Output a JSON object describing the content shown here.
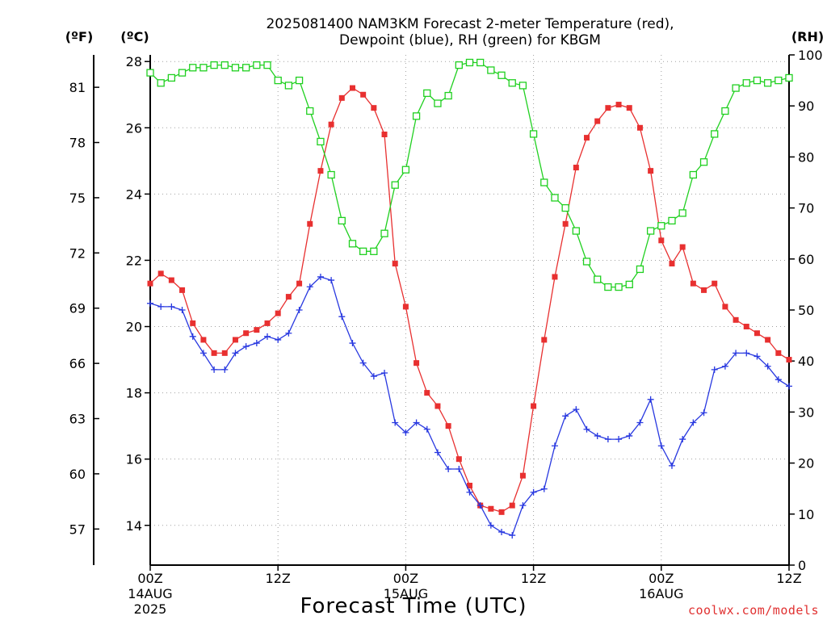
{
  "chart_data": {
    "type": "line",
    "title_line1": "2025081400 NAM3KM Forecast 2-meter Temperature (red),",
    "title_line2": "Dewpoint (blue), RH (green) for KBGM",
    "xlabel": "Forecast Time (UTC)",
    "units": {
      "fahrenheit": "(ºF)",
      "celsius": "(ºC)",
      "rh": "(RH)"
    },
    "credit": "coolwx.com/models",
    "x_axis": {
      "range_hours": [
        0,
        60
      ],
      "ticks": [
        {
          "hour": 0,
          "label": "00Z",
          "date": "14AUG",
          "year": "2025"
        },
        {
          "hour": 12,
          "label": "12Z",
          "date": "",
          "year": ""
        },
        {
          "hour": 24,
          "label": "00Z",
          "date": "15AUG",
          "year": ""
        },
        {
          "hour": 36,
          "label": "12Z",
          "date": "",
          "year": ""
        },
        {
          "hour": 48,
          "label": "00Z",
          "date": "16AUG",
          "year": ""
        },
        {
          "hour": 60,
          "label": "12Z",
          "date": "",
          "year": ""
        }
      ]
    },
    "y_celsius": {
      "range": [
        12.8,
        28.2
      ],
      "ticks": [
        "14",
        "16",
        "18",
        "20",
        "22",
        "24",
        "26",
        "28"
      ]
    },
    "y_fahrenheit": {
      "ticks": [
        "57",
        "60",
        "63",
        "66",
        "69",
        "72",
        "75",
        "78",
        "81"
      ]
    },
    "y_rh": {
      "range": [
        0,
        100
      ],
      "ticks": [
        "0",
        "10",
        "20",
        "30",
        "40",
        "50",
        "60",
        "70",
        "80",
        "90",
        "100"
      ]
    },
    "grid": true,
    "series": [
      {
        "name": "Temperature",
        "unit": "C",
        "color": "#e83030",
        "marker": "filled-square",
        "values": [
          21.3,
          21.6,
          21.4,
          21.1,
          20.1,
          19.6,
          19.2,
          19.2,
          19.6,
          19.8,
          19.9,
          20.1,
          20.4,
          20.9,
          21.3,
          23.1,
          24.7,
          26.1,
          26.9,
          27.2,
          27.0,
          26.6,
          25.8,
          21.9,
          20.6,
          18.9,
          18.0,
          17.6,
          17.0,
          16.0,
          15.2,
          14.6,
          14.5,
          14.4,
          14.6,
          15.5,
          17.6,
          19.6,
          21.5,
          23.1,
          24.8,
          25.7,
          26.2,
          26.6,
          26.7,
          26.6,
          26.0,
          24.7,
          22.6,
          21.9,
          22.4,
          21.3,
          21.1,
          21.3,
          20.6,
          20.2,
          20.0,
          19.8,
          19.6,
          19.2,
          19.0
        ]
      },
      {
        "name": "Dewpoint",
        "unit": "C",
        "color": "#2838e0",
        "marker": "plus",
        "values": [
          20.7,
          20.6,
          20.6,
          20.5,
          19.7,
          19.2,
          18.7,
          18.7,
          19.2,
          19.4,
          19.5,
          19.7,
          19.6,
          19.8,
          20.5,
          21.2,
          21.5,
          21.4,
          20.3,
          19.5,
          18.9,
          18.5,
          18.6,
          17.1,
          16.8,
          17.1,
          16.9,
          16.2,
          15.7,
          15.7,
          15.0,
          14.6,
          14.0,
          13.8,
          13.7,
          14.6,
          15.0,
          15.1,
          16.4,
          17.3,
          17.5,
          16.9,
          16.7,
          16.6,
          16.6,
          16.7,
          17.1,
          17.8,
          16.4,
          15.8,
          16.6,
          17.1,
          17.4,
          18.7,
          18.8,
          19.2,
          19.2,
          19.1,
          18.8,
          18.4,
          18.2
        ]
      },
      {
        "name": "RH",
        "unit": "%",
        "color": "#20d020",
        "marker": "open-square",
        "values": [
          96.5,
          94.5,
          95.5,
          96.5,
          97.5,
          97.5,
          98,
          98,
          97.5,
          97.5,
          98,
          98,
          95,
          94,
          95,
          89,
          83,
          76.5,
          67.5,
          63,
          61.5,
          61.5,
          65,
          74.5,
          77.5,
          88,
          92.5,
          90.5,
          92,
          98,
          98.5,
          98.5,
          97,
          96,
          94.5,
          94,
          84.5,
          75,
          72,
          70,
          65.5,
          59.5,
          56,
          54.5,
          54.5,
          55,
          58,
          65.5,
          66.5,
          67.5,
          69,
          76.5,
          79,
          84.5,
          89,
          93.5,
          94.5,
          95,
          94.5,
          95,
          95.5
        ]
      }
    ]
  }
}
